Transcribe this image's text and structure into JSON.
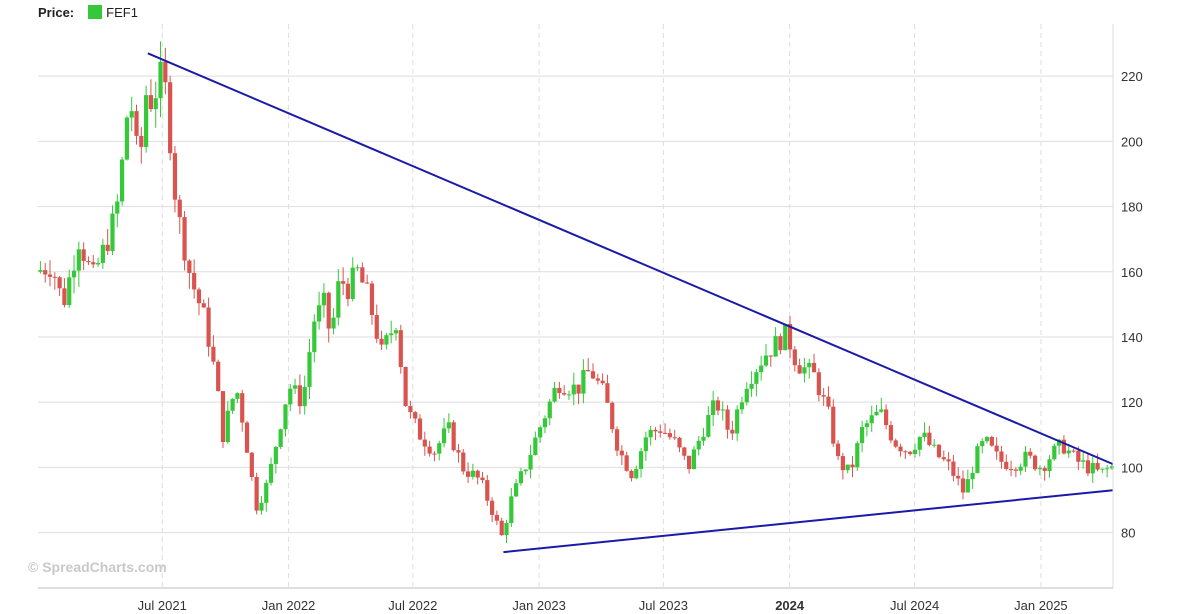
{
  "legend": {
    "label": "Price:",
    "series_name": "FEF1",
    "series_color": "#35c93a"
  },
  "watermark": "© SpreadCharts.com",
  "colors": {
    "up": "#35c93a",
    "down": "#d9534f",
    "trendline": "#1a1aa8",
    "grid": "#dedede"
  },
  "chart_data": {
    "type": "candlestick",
    "title": "",
    "xlabel": "",
    "ylabel": "",
    "ylim": [
      63,
      236
    ],
    "xlim": [
      "2021-01-01",
      "2025-04-16"
    ],
    "grid": true,
    "legend_position": "top-left",
    "x_ticks": [
      {
        "date": "2021-07-01",
        "label": "Jul 2021",
        "bold": false
      },
      {
        "date": "2022-01-01",
        "label": "Jan 2022",
        "bold": false
      },
      {
        "date": "2022-07-01",
        "label": "Jul 2022",
        "bold": false
      },
      {
        "date": "2023-01-01",
        "label": "Jan 2023",
        "bold": false
      },
      {
        "date": "2023-07-01",
        "label": "Jul 2023",
        "bold": false
      },
      {
        "date": "2024-01-01",
        "label": "2024",
        "bold": true
      },
      {
        "date": "2024-07-01",
        "label": "Jul 2024",
        "bold": false
      },
      {
        "date": "2025-01-01",
        "label": "Jan 2025",
        "bold": false
      }
    ],
    "y_ticks": [
      80,
      100,
      120,
      140,
      160,
      180,
      200,
      220
    ],
    "series": [
      {
        "name": "FEF1",
        "anchors": [
          [
            "2021-01-01",
            160
          ],
          [
            "2021-01-25",
            162
          ],
          [
            "2021-02-10",
            150
          ],
          [
            "2021-03-05",
            170
          ],
          [
            "2021-03-25",
            158
          ],
          [
            "2021-04-20",
            172
          ],
          [
            "2021-05-05",
            185
          ],
          [
            "2021-05-10",
            205
          ],
          [
            "2021-05-20",
            212
          ],
          [
            "2021-06-01",
            190
          ],
          [
            "2021-06-10",
            215
          ],
          [
            "2021-06-20",
            212
          ],
          [
            "2021-07-01",
            220
          ],
          [
            "2021-07-10",
            215
          ],
          [
            "2021-07-25",
            180
          ],
          [
            "2021-08-15",
            158
          ],
          [
            "2021-09-05",
            145
          ],
          [
            "2021-09-20",
            128
          ],
          [
            "2021-10-01",
            110
          ],
          [
            "2021-10-20",
            125
          ],
          [
            "2021-11-01",
            112
          ],
          [
            "2021-11-18",
            88
          ],
          [
            "2021-12-05",
            95
          ],
          [
            "2021-12-25",
            115
          ],
          [
            "2022-01-05",
            125
          ],
          [
            "2022-01-25",
            120
          ],
          [
            "2022-02-10",
            145
          ],
          [
            "2022-02-25",
            150
          ],
          [
            "2022-03-07",
            140
          ],
          [
            "2022-03-20",
            158
          ],
          [
            "2022-04-01",
            155
          ],
          [
            "2022-04-15",
            160
          ],
          [
            "2022-05-01",
            152
          ],
          [
            "2022-05-20",
            135
          ],
          [
            "2022-06-10",
            145
          ],
          [
            "2022-06-25",
            118
          ],
          [
            "2022-07-15",
            110
          ],
          [
            "2022-08-05",
            105
          ],
          [
            "2022-08-25",
            112
          ],
          [
            "2022-09-15",
            100
          ],
          [
            "2022-10-10",
            96
          ],
          [
            "2022-11-01",
            85
          ],
          [
            "2022-11-10",
            78
          ],
          [
            "2022-11-25",
            90
          ],
          [
            "2022-12-15",
            100
          ],
          [
            "2023-01-05",
            112
          ],
          [
            "2023-02-01",
            126
          ],
          [
            "2023-03-01",
            124
          ],
          [
            "2023-03-20",
            130
          ],
          [
            "2023-04-10",
            122
          ],
          [
            "2023-05-01",
            105
          ],
          [
            "2023-05-20",
            98
          ],
          [
            "2023-06-10",
            110
          ],
          [
            "2023-07-01",
            112
          ],
          [
            "2023-07-20",
            108
          ],
          [
            "2023-08-10",
            100
          ],
          [
            "2023-09-01",
            112
          ],
          [
            "2023-09-20",
            120
          ],
          [
            "2023-10-10",
            110
          ],
          [
            "2023-11-01",
            126
          ],
          [
            "2023-12-01",
            135
          ],
          [
            "2023-12-31",
            141
          ],
          [
            "2024-01-15",
            132
          ],
          [
            "2024-02-10",
            128
          ],
          [
            "2024-03-01",
            116
          ],
          [
            "2024-03-15",
            102
          ],
          [
            "2024-04-01",
            98
          ],
          [
            "2024-04-20",
            112
          ],
          [
            "2024-05-15",
            117
          ],
          [
            "2024-06-05",
            108
          ],
          [
            "2024-06-25",
            105
          ],
          [
            "2024-07-15",
            110
          ],
          [
            "2024-08-05",
            104
          ],
          [
            "2024-08-25",
            100
          ],
          [
            "2024-09-15",
            92
          ],
          [
            "2024-10-01",
            103
          ],
          [
            "2024-10-15",
            108
          ],
          [
            "2024-11-05",
            102
          ],
          [
            "2024-11-25",
            101
          ],
          [
            "2024-12-15",
            103
          ],
          [
            "2025-01-05",
            100
          ],
          [
            "2025-01-20",
            104
          ],
          [
            "2025-02-05",
            107
          ],
          [
            "2025-02-25",
            102
          ],
          [
            "2025-03-15",
            100
          ],
          [
            "2025-04-01",
            98
          ],
          [
            "2025-04-16",
            100
          ]
        ]
      }
    ],
    "annotations": [
      {
        "type": "trendline",
        "name": "upper-trendline",
        "from": [
          "2021-06-10",
          227
        ],
        "to": [
          "2025-04-16",
          101
        ]
      },
      {
        "type": "trendline",
        "name": "lower-trendline",
        "from": [
          "2022-11-10",
          74
        ],
        "to": [
          "2025-04-16",
          93
        ]
      }
    ]
  }
}
